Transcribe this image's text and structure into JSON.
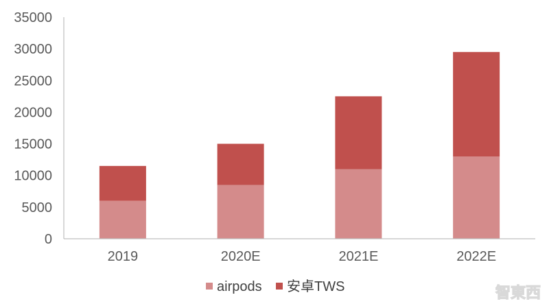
{
  "chart_data": {
    "type": "bar",
    "stacked": true,
    "title": "",
    "xlabel": "",
    "ylabel": "",
    "categories": [
      "2019",
      "2020E",
      "2021E",
      "2022E"
    ],
    "series": [
      {
        "name": "airpods",
        "color": "#d48b8b",
        "values": [
          6000,
          8500,
          11000,
          13000
        ]
      },
      {
        "name": "安卓TWS",
        "color": "#c0504d",
        "values": [
          5500,
          6500,
          11500,
          16500
        ]
      }
    ],
    "ylim": [
      0,
      35000
    ],
    "yticks": [
      0,
      5000,
      10000,
      15000,
      20000,
      25000,
      30000,
      35000
    ],
    "grid": false,
    "legend_position": "bottom-center"
  },
  "watermark": {
    "text": "智東西"
  }
}
